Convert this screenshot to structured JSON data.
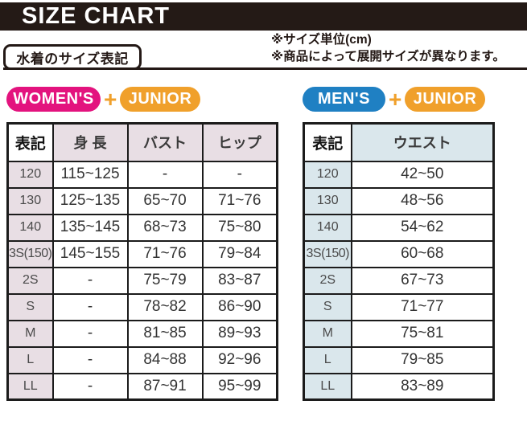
{
  "title_bar": {
    "title": "SIZE CHART"
  },
  "notes": {
    "line1": "※サイズ単位(cm)",
    "line2": "※商品によって展開サイズが異なります。"
  },
  "section_tab": {
    "label": "水着のサイズ表記"
  },
  "badge_groups": {
    "womens": {
      "primary": "WOMEN'S",
      "plus": "+",
      "secondary": "JUNIOR"
    },
    "mens": {
      "primary": "MEN'S",
      "plus": "+",
      "secondary": "JUNIOR"
    }
  },
  "colors": {
    "title_bar_black": "#241A16",
    "womens_pink": "#E3137E",
    "mens_blue": "#1F80C3",
    "junior_orange": "#F0A02B",
    "womens_header_bg": "#E8DEE4",
    "mens_header_bg": "#DAE7EC"
  },
  "womens_table": {
    "headers": [
      "表記",
      "身 長",
      "バスト",
      "ヒップ"
    ],
    "rows": [
      {
        "size": "120",
        "height": "115~125",
        "bust": "-",
        "hip": "-"
      },
      {
        "size": "130",
        "height": "125~135",
        "bust": "65~70",
        "hip": "71~76"
      },
      {
        "size": "140",
        "height": "135~145",
        "bust": "68~73",
        "hip": "75~80"
      },
      {
        "size": "3S(150)",
        "height": "145~155",
        "bust": "71~76",
        "hip": "79~84"
      },
      {
        "size": "2S",
        "height": "-",
        "bust": "75~79",
        "hip": "83~87"
      },
      {
        "size": "S",
        "height": "-",
        "bust": "78~82",
        "hip": "86~90"
      },
      {
        "size": "M",
        "height": "-",
        "bust": "81~85",
        "hip": "89~93"
      },
      {
        "size": "L",
        "height": "-",
        "bust": "84~88",
        "hip": "92~96"
      },
      {
        "size": "LL",
        "height": "-",
        "bust": "87~91",
        "hip": "95~99"
      }
    ]
  },
  "mens_table": {
    "headers": [
      "表記",
      "ウエスト"
    ],
    "rows": [
      {
        "size": "120",
        "waist": "42~50"
      },
      {
        "size": "130",
        "waist": "48~56"
      },
      {
        "size": "140",
        "waist": "54~62"
      },
      {
        "size": "3S(150)",
        "waist": "60~68"
      },
      {
        "size": "2S",
        "waist": "67~73"
      },
      {
        "size": "S",
        "waist": "71~77"
      },
      {
        "size": "M",
        "waist": "75~81"
      },
      {
        "size": "L",
        "waist": "79~85"
      },
      {
        "size": "LL",
        "waist": "83~89"
      }
    ]
  }
}
